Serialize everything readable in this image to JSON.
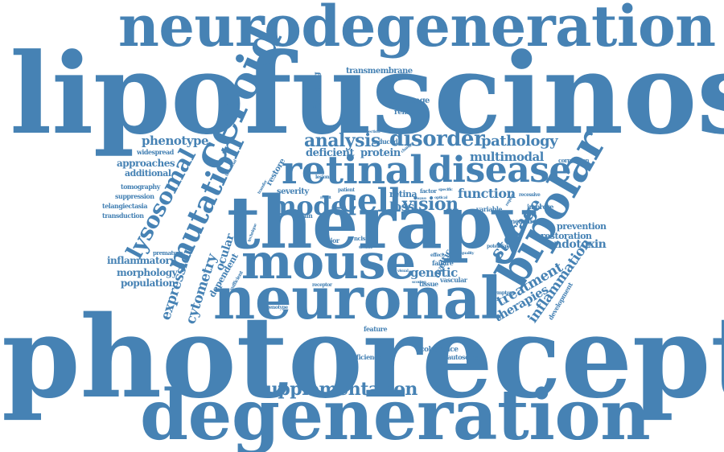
{
  "word_color": "#4682b4",
  "background_color": "#ffffff",
  "words": {
    "neurodegeneration": "neurodegeneration",
    "lipofuscinoses": "lipofuscinoses",
    "photoreceptor": "photoreceptor",
    "degeneration": "degeneration",
    "therapy": "therapy",
    "neuronal": "neuronal",
    "mouse": "mouse",
    "retinal": "retinal",
    "disease": "disease",
    "ceroid": "ceroid",
    "bipolar": "bipolar",
    "mutation": "mutation",
    "lysosomal": "lysosomal",
    "cell": "cell",
    "model": "model",
    "analysis": "analysis",
    "disorder": "disorder",
    "storage": "storage",
    "vision": "vision",
    "loss": "loss",
    "supplementation": "supplementation",
    "treatment": "treatment",
    "inflammation": "inflammation",
    "expression": "expression",
    "cytometry": "cytometry",
    "ocular": "ocular",
    "multimodal": "multimodal",
    "pathology": "pathology",
    "phenotype": "phenotype",
    "function": "function",
    "genetic": "genetic",
    "therapies": "therapies",
    "endotoxin": "endotoxin",
    "restoration": "restoration",
    "prevention": "prevention",
    "inflammatory": "inflammatory",
    "morphology": "morphology",
    "population": "population",
    "approaches": "approaches",
    "deficient": "deficient",
    "protein": "protein",
    "restore": "restore",
    "dependent": "dependent",
    "additional": "additional",
    "severity": "severity",
    "retina": "retina",
    "transmembrane": "transmembrane",
    "confounding": "confounding",
    "challenge": "challenge",
    "removal": "removal",
    "widespread": "widespread",
    "tomography": "tomography",
    "suppression": "suppression",
    "telangiectasia": "telangiectasia",
    "transduction": "transduction",
    "premature": "premature",
    "measure": "measure",
    "improve": "improve",
    "variable": "variable",
    "induced": "induced",
    "correlation": "correlation",
    "feature": "feature",
    "coherence": "coherence",
    "deficiency": "deficiency",
    "autosomal": "autosomal",
    "genotype": "genotype",
    "tissue": "tissue",
    "vascular": "vascular",
    "failure": "failure",
    "uveitic": "uveitic",
    "development": "development",
    "major": "major",
    "brain": "brain",
    "factor": "factor",
    "patient": "patient",
    "technique": "technique",
    "lesion": "lesion",
    "injection": "injection",
    "recessive": "recessive",
    "potential": "potential",
    "symptom": "symptom",
    "sufficient": "sufficient",
    "receptor": "receptor",
    "ncls": "ncls",
    "death": "death",
    "effect": "effect",
    "beneficial": "beneficial",
    "transfer": "transfer",
    "result": "result",
    "specific": "specific",
    "require": "require",
    "wave": "wave",
    "visual": "visual",
    "change": "change",
    "quality": "quality",
    "scoring": "scoring",
    "flow": "flow",
    "optical": "optical"
  }
}
